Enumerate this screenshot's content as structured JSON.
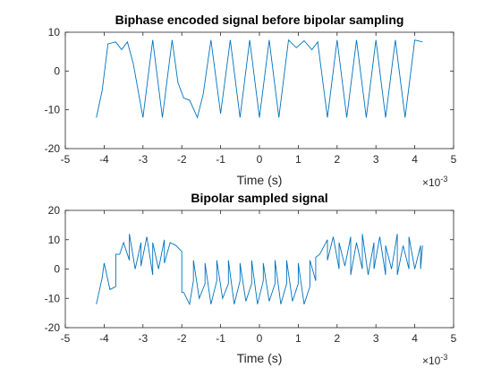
{
  "chart_data": [
    {
      "type": "line",
      "title": "Biphase encoded signal before bipolar sampling",
      "xlabel": "Time (s)",
      "x_exponent_label": "×10",
      "x_exponent_power": "-3",
      "xlim": [
        -5,
        5
      ],
      "ylim": [
        -20,
        10
      ],
      "xticks": [
        -5,
        -4,
        -3,
        -2,
        -1,
        0,
        1,
        2,
        3,
        4,
        5
      ],
      "yticks": [
        -20,
        -10,
        0,
        10
      ],
      "xtick_labels": [
        "-5",
        "-4",
        "-3",
        "-2",
        "-1",
        "0",
        "1",
        "2",
        "3",
        "4",
        "5"
      ],
      "ytick_labels": [
        "-20",
        "-10",
        "0",
        "10"
      ],
      "series": [
        {
          "color": "#0072bd",
          "x": [
            -4.2,
            -4.05,
            -3.9,
            -3.7,
            -3.55,
            -3.4,
            -3.25,
            -3.0,
            -2.75,
            -2.5,
            -2.25,
            -2.1,
            -1.95,
            -1.8,
            -1.6,
            -1.45,
            -1.25,
            -1.0,
            -0.75,
            -0.5,
            -0.25,
            0.0,
            0.25,
            0.5,
            0.75,
            0.95,
            1.15,
            1.35,
            1.5,
            1.75,
            2.0,
            2.25,
            2.5,
            2.75,
            3.0,
            3.25,
            3.5,
            3.75,
            4.0,
            4.2
          ],
          "y": [
            -12,
            -5,
            7,
            7.5,
            5.5,
            7.5,
            2,
            -12,
            8,
            -12,
            8,
            -3,
            -7,
            -7.5,
            -12,
            -6,
            8,
            -11,
            8,
            -12,
            8,
            -12,
            8,
            -12,
            8,
            6,
            7.8,
            5.5,
            7.5,
            -12,
            8,
            -12,
            8,
            -12,
            8,
            -12,
            8,
            -12,
            8,
            7.5
          ]
        }
      ]
    },
    {
      "type": "line",
      "title": "Bipolar sampled signal",
      "xlabel": "Time (s)",
      "x_exponent_label": "×10",
      "x_exponent_power": "-3",
      "xlim": [
        -5,
        5
      ],
      "ylim": [
        -20,
        20
      ],
      "xticks": [
        -5,
        -4,
        -3,
        -2,
        -1,
        0,
        1,
        2,
        3,
        4,
        5
      ],
      "yticks": [
        -20,
        -10,
        0,
        10,
        20
      ],
      "xtick_labels": [
        "-5",
        "-4",
        "-3",
        "-2",
        "-1",
        "0",
        "1",
        "2",
        "3",
        "4",
        "5"
      ],
      "ytick_labels": [
        "-20",
        "-10",
        "0",
        "10",
        "20"
      ],
      "series": [
        {
          "color": "#0072bd",
          "x": [
            -4.2,
            -4.05,
            -4.0,
            -3.85,
            -3.7,
            -3.7,
            -3.6,
            -3.5,
            -3.35,
            -3.35,
            -3.2,
            -3.05,
            -3.05,
            -2.9,
            -2.75,
            -2.75,
            -2.6,
            -2.45,
            -2.45,
            -2.3,
            -2.15,
            -2.0,
            -2.0,
            -1.95,
            -1.8,
            -1.7,
            -1.7,
            -1.55,
            -1.4,
            -1.4,
            -1.25,
            -1.1,
            -1.1,
            -0.95,
            -0.8,
            -0.8,
            -0.65,
            -0.5,
            -0.5,
            -0.35,
            -0.2,
            -0.2,
            -0.05,
            0.1,
            0.1,
            0.25,
            0.4,
            0.4,
            0.55,
            0.7,
            0.7,
            0.85,
            1.0,
            1.0,
            1.15,
            1.3,
            1.3,
            1.45,
            1.45,
            1.55,
            1.75,
            1.75,
            1.9,
            2.05,
            2.05,
            2.2,
            2.35,
            2.35,
            2.5,
            2.65,
            2.65,
            2.8,
            2.95,
            2.95,
            3.1,
            3.25,
            3.25,
            3.4,
            3.55,
            3.55,
            3.7,
            3.85,
            3.85,
            4.0,
            4.15,
            4.15,
            4.2
          ],
          "y": [
            -12,
            -3,
            2,
            -7,
            -6,
            5,
            5,
            9,
            3,
            12,
            0,
            9,
            1,
            11,
            -2,
            9,
            0,
            10,
            2,
            9,
            8,
            6,
            -8,
            -8,
            -12,
            -4,
            3,
            -10,
            -5,
            2,
            -12,
            -4,
            3,
            -10,
            -5,
            3,
            -12,
            -4,
            2,
            -11,
            -5,
            3,
            -12,
            -4,
            2,
            -11,
            -5,
            3,
            -12,
            -5,
            3,
            -11,
            -5,
            2,
            -12,
            -6,
            3,
            -4,
            4,
            5,
            10,
            3,
            11,
            0,
            9,
            1,
            11,
            -2,
            9,
            0,
            12,
            -2,
            9,
            0,
            11,
            -2,
            8,
            0,
            12,
            -2,
            8,
            0,
            11,
            0,
            8,
            0,
            8
          ]
        }
      ]
    }
  ]
}
